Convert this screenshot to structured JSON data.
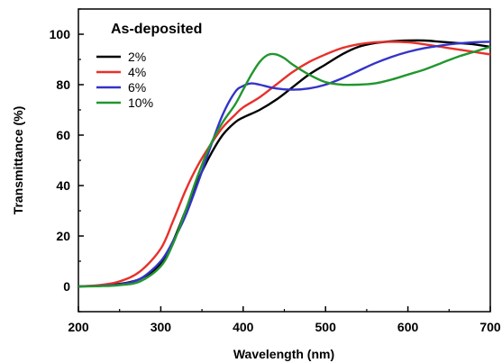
{
  "chart_data": {
    "type": "line",
    "title": "As-deposited",
    "xlabel": "Wavelength (nm)",
    "ylabel": "Transmittance (%)",
    "xlim": [
      200,
      700
    ],
    "ylim": [
      -10,
      110
    ],
    "xticks": [
      200,
      300,
      400,
      500,
      600,
      700
    ],
    "yticks": [
      0,
      20,
      40,
      60,
      80,
      100
    ],
    "grid": false,
    "legend_position": "top-left",
    "series": [
      {
        "name": "2%",
        "color": "#000000",
        "x": [
          200,
          225,
          250,
          275,
          300,
          315,
          330,
          345,
          360,
          375,
          390,
          400,
          420,
          440,
          460,
          480,
          500,
          520,
          540,
          560,
          580,
          600,
          620,
          640,
          660,
          680,
          700
        ],
        "y": [
          0,
          0.2,
          1,
          3,
          9,
          18,
          30,
          42,
          52,
          60,
          65,
          67,
          70,
          74,
          79,
          84,
          88,
          92,
          95,
          96.5,
          97.2,
          97.5,
          97.5,
          97,
          96.5,
          96,
          95
        ]
      },
      {
        "name": "4%",
        "color": "#e8302a",
        "x": [
          200,
          225,
          250,
          275,
          300,
          315,
          330,
          345,
          360,
          375,
          390,
          400,
          420,
          440,
          460,
          480,
          500,
          520,
          540,
          560,
          580,
          600,
          620,
          640,
          660,
          680,
          700
        ],
        "y": [
          0,
          0.5,
          2,
          6,
          15,
          26,
          38,
          48,
          56,
          63,
          68,
          71,
          75,
          80,
          85,
          89,
          92,
          94.5,
          96,
          96.8,
          97,
          96.8,
          96,
          95,
          94,
          93,
          92
        ]
      },
      {
        "name": "6%",
        "color": "#3434c8",
        "x": [
          200,
          225,
          250,
          275,
          300,
          315,
          330,
          345,
          360,
          375,
          390,
          400,
          410,
          420,
          440,
          460,
          480,
          500,
          520,
          540,
          560,
          580,
          600,
          620,
          640,
          660,
          680,
          700
        ],
        "y": [
          0,
          0.2,
          0.8,
          3,
          10,
          18,
          28,
          41,
          55,
          68,
          77,
          79.5,
          80.5,
          80,
          78.5,
          78,
          78.5,
          80,
          82.5,
          85.5,
          88.5,
          91,
          93,
          94.5,
          95.5,
          96.3,
          96.8,
          97
        ]
      },
      {
        "name": "10%",
        "color": "#22962e",
        "x": [
          200,
          225,
          250,
          275,
          300,
          315,
          330,
          345,
          360,
          375,
          390,
          400,
          410,
          420,
          430,
          440,
          450,
          460,
          480,
          500,
          520,
          540,
          560,
          580,
          600,
          620,
          640,
          660,
          680,
          700
        ],
        "y": [
          0,
          0.1,
          0.5,
          2,
          8,
          17,
          30,
          44,
          56,
          65,
          72,
          78,
          84,
          89,
          91.8,
          92,
          90.5,
          88,
          84,
          81,
          80,
          80,
          80.5,
          82,
          84,
          86,
          88.5,
          91,
          93,
          95
        ]
      }
    ]
  }
}
